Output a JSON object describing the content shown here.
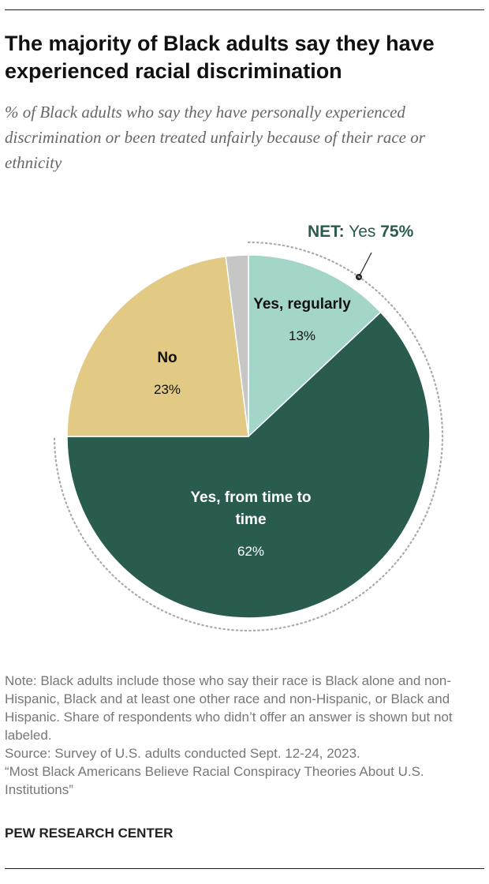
{
  "chart_data": {
    "type": "pie",
    "title": "The majority of Black adults say they have experienced racial discrimination",
    "subtitle": "% of Black adults who say they have personally experienced discrimination or been treated unfairly because of their race or ethnicity",
    "categories": [
      "Yes, regularly",
      "Yes, from time to time",
      "No",
      null
    ],
    "values": [
      13,
      62,
      23,
      2
    ],
    "value_labels": [
      "13%",
      "62%",
      "23%",
      null
    ],
    "colors": [
      "#a3d5c8",
      "#2a5b4f",
      "#e2c984",
      "#c6c6c6"
    ],
    "net": {
      "label": "NET:",
      "name": "Yes",
      "value": 75,
      "value_label": "75%"
    }
  },
  "footer": {
    "note": "Note: Black adults include those who say their race is Black alone and non-Hispanic, Black and at least one other race and non-Hispanic, or Black and Hispanic. Share of respondents who didn’t offer an answer is shown but not labeled.",
    "source": "Source: Survey of U.S. adults conducted Sept. 12-24, 2023.",
    "report": "“Most Black Americans Believe Racial Conspiracy Theories About U.S. Institutions”",
    "org": "PEW RESEARCH CENTER"
  }
}
